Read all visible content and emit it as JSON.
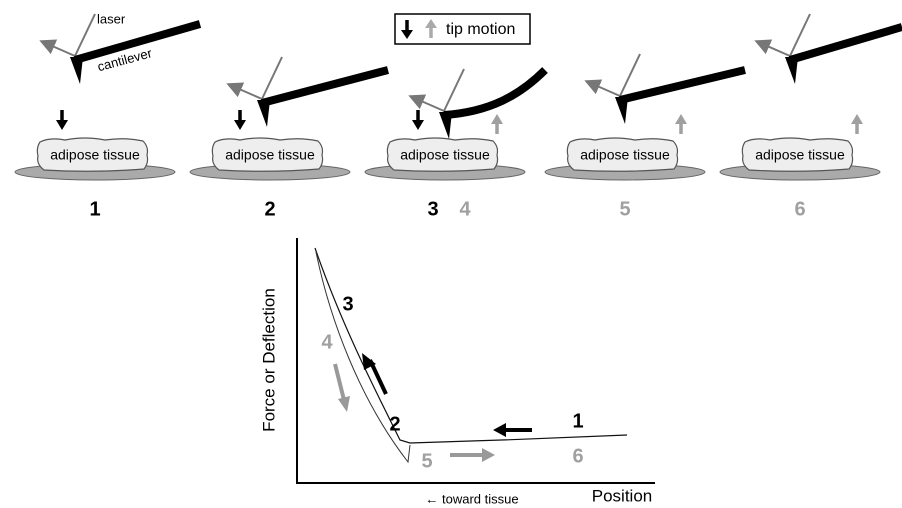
{
  "legend": {
    "label": "tip motion"
  },
  "labels": {
    "laser": "laser",
    "cantilever": "cantilever"
  },
  "panels": [
    {
      "tissue": "adipose tissue",
      "steps": [
        "1"
      ]
    },
    {
      "tissue": "adipose tissue",
      "steps": [
        "2"
      ]
    },
    {
      "tissue": "adipose tissue",
      "steps": [
        "3",
        "4"
      ]
    },
    {
      "tissue": "adipose tissue",
      "steps": [
        "5"
      ]
    },
    {
      "tissue": "adipose tissue",
      "steps": [
        "6"
      ]
    }
  ],
  "graph": {
    "y_label": "Force or Deflection",
    "x_label": "Position",
    "x_note": "← toward tissue",
    "annotations": [
      "3",
      "4",
      "2",
      "1",
      "5",
      "6"
    ]
  }
}
